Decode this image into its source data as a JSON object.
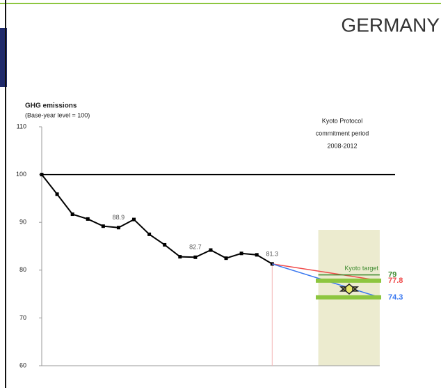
{
  "chart_data": {
    "type": "line",
    "title": "GERMANY",
    "y_label": "GHG emissions",
    "y_sublabel": "(Base-year level = 100)",
    "annotation": [
      "Kyoto Protocol",
      "commitment period",
      "2008-2012"
    ],
    "xlim": [
      1990,
      2013
    ],
    "ylim": [
      60,
      110
    ],
    "yticks": [
      60,
      70,
      80,
      90,
      100,
      110
    ],
    "baseline": 100,
    "commitment_period": [
      2008,
      2012
    ],
    "series": [
      {
        "name": null,
        "color": "#000000",
        "x": [
          1990,
          1991,
          1992,
          1993,
          1994,
          1995,
          1996,
          1997,
          1998,
          1999,
          2000,
          2001,
          2002,
          2003,
          2004,
          2005
        ],
        "values": [
          100,
          95.9,
          91.7,
          90.7,
          89.2,
          88.9,
          90.6,
          87.5,
          85.3,
          82.8,
          82.7,
          84.2,
          82.5,
          83.5,
          83.2,
          81.3
        ],
        "value_labels": [
          null,
          null,
          null,
          null,
          null,
          "88.9",
          null,
          null,
          null,
          null,
          "82.7",
          null,
          null,
          null,
          null,
          "81.3"
        ]
      },
      {
        "name": null,
        "color": "#f04a4a",
        "x": [
          2005,
          2012
        ],
        "values": [
          81.3,
          77.8
        ],
        "end_label": "77.8"
      },
      {
        "name": null,
        "color": "#3a78f0",
        "x": [
          2005,
          2012
        ],
        "values": [
          81.3,
          74.3
        ],
        "end_label": "74.3"
      },
      {
        "name": "Kyoto target",
        "color": "#3c8a2e",
        "x": [
          2008,
          2012
        ],
        "values": [
          79,
          79
        ],
        "end_label": "79"
      }
    ]
  }
}
